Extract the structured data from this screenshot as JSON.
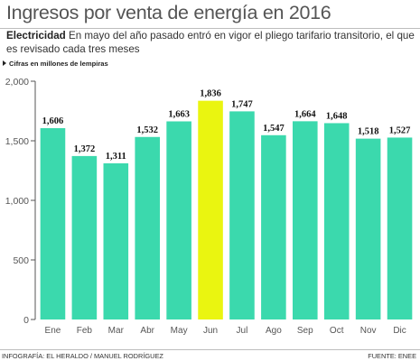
{
  "title": "Ingresos por venta de energía en  2016",
  "subtitle_bold": "Electricidad",
  "subtitle_rest": " En mayo del año pasado entró en vigor el pliego tarifario transitorio, el que es revisado cada tres meses",
  "units_label": "Cifras en millones de lempiras",
  "credit": "INFOGRAFÍA: EL HERALDO / MANUEL RODRÍGUEZ",
  "source": "FUENTE: ENEE",
  "colors": {
    "bar": "#3bd9ad",
    "highlight": "#eaf510",
    "axis": "#555555"
  },
  "chart_data": {
    "type": "bar",
    "categories": [
      "Ene",
      "Feb",
      "Mar",
      "Abr",
      "May",
      "Jun",
      "Jul",
      "Ago",
      "Sep",
      "Oct",
      "Nov",
      "Dic"
    ],
    "values": [
      1606,
      1372,
      1311,
      1532,
      1663,
      1836,
      1747,
      1547,
      1664,
      1648,
      1518,
      1527
    ],
    "value_labels": [
      "1,606",
      "1,372",
      "1,311",
      "1,532",
      "1,663",
      "1,836",
      "1,747",
      "1,547",
      "1,664",
      "1,648",
      "1,518",
      "1,527"
    ],
    "highlight_category": "Jun",
    "yticks": [
      0,
      500,
      1000,
      1500,
      2000
    ],
    "ytick_labels": [
      "0",
      "500",
      "1,000",
      "1,500",
      "2,000"
    ],
    "ylim": [
      0,
      2000
    ],
    "grid": false,
    "legend": "none"
  }
}
